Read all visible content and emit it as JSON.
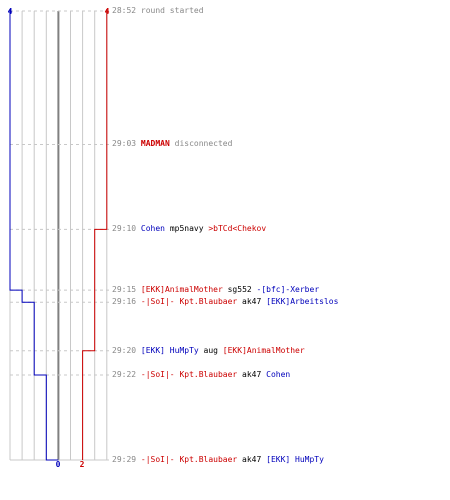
{
  "colors": {
    "team_blue": "#0000bb",
    "team_red": "#cc0000",
    "grid": "#c8c8c8",
    "center_line": "#808080",
    "time_text": "#888888"
  },
  "chart_data": {
    "type": "line",
    "title": "",
    "score_labels": {
      "blue_top": "4",
      "red_top": "4",
      "blue_bottom": "0",
      "red_bottom": "2"
    },
    "blue_steps": [
      {
        "time": "28:52",
        "score": 4
      },
      {
        "time": "29:15",
        "score": 3
      },
      {
        "time": "29:16",
        "score": 2
      },
      {
        "time": "29:22",
        "score": 1
      },
      {
        "time": "29:29",
        "score": 0
      }
    ],
    "red_steps": [
      {
        "time": "28:52",
        "score": 4
      },
      {
        "time": "29:10",
        "score": 3
      },
      {
        "time": "29:20",
        "score": 2
      }
    ]
  },
  "events": [
    {
      "time": "28:52",
      "parts": [
        {
          "text": "round started",
          "style": "gray"
        }
      ]
    },
    {
      "time": "29:03",
      "parts": [
        {
          "text": "MADMAN",
          "style": "red bold"
        },
        {
          "text": " disconnected",
          "style": "gray"
        }
      ]
    },
    {
      "time": "29:10",
      "parts": [
        {
          "text": "Cohen",
          "style": "blue"
        },
        {
          "text": " mp5navy ",
          "style": "black"
        },
        {
          "text": ">bTCd<Chekov",
          "style": "red"
        }
      ]
    },
    {
      "time": "29:15",
      "parts": [
        {
          "text": "[EKK]AnimalMother",
          "style": "red"
        },
        {
          "text": " sg552 ",
          "style": "black"
        },
        {
          "text": "-[bfc]-Xerber",
          "style": "blue"
        }
      ]
    },
    {
      "time": "29:16",
      "parts": [
        {
          "text": "-|SoI|- Kpt.Blaubaer",
          "style": "red"
        },
        {
          "text": " ak47 ",
          "style": "black"
        },
        {
          "text": "[EKK]Arbeitslos",
          "style": "blue"
        }
      ]
    },
    {
      "time": "29:20",
      "parts": [
        {
          "text": "[EKK] HuMpTy",
          "style": "blue"
        },
        {
          "text": " aug ",
          "style": "black"
        },
        {
          "text": "[EKK]AnimalMother",
          "style": "red"
        }
      ]
    },
    {
      "time": "29:22",
      "parts": [
        {
          "text": "-|SoI|- Kpt.Blaubaer",
          "style": "red"
        },
        {
          "text": " ak47 ",
          "style": "black"
        },
        {
          "text": "Cohen",
          "style": "blue"
        }
      ]
    },
    {
      "time": "29:29",
      "parts": [
        {
          "text": "-|SoI|- Kpt.Blaubaer",
          "style": "red"
        },
        {
          "text": " ak47 ",
          "style": "black"
        },
        {
          "text": "[EKK] HuMpTy",
          "style": "blue"
        }
      ]
    }
  ]
}
